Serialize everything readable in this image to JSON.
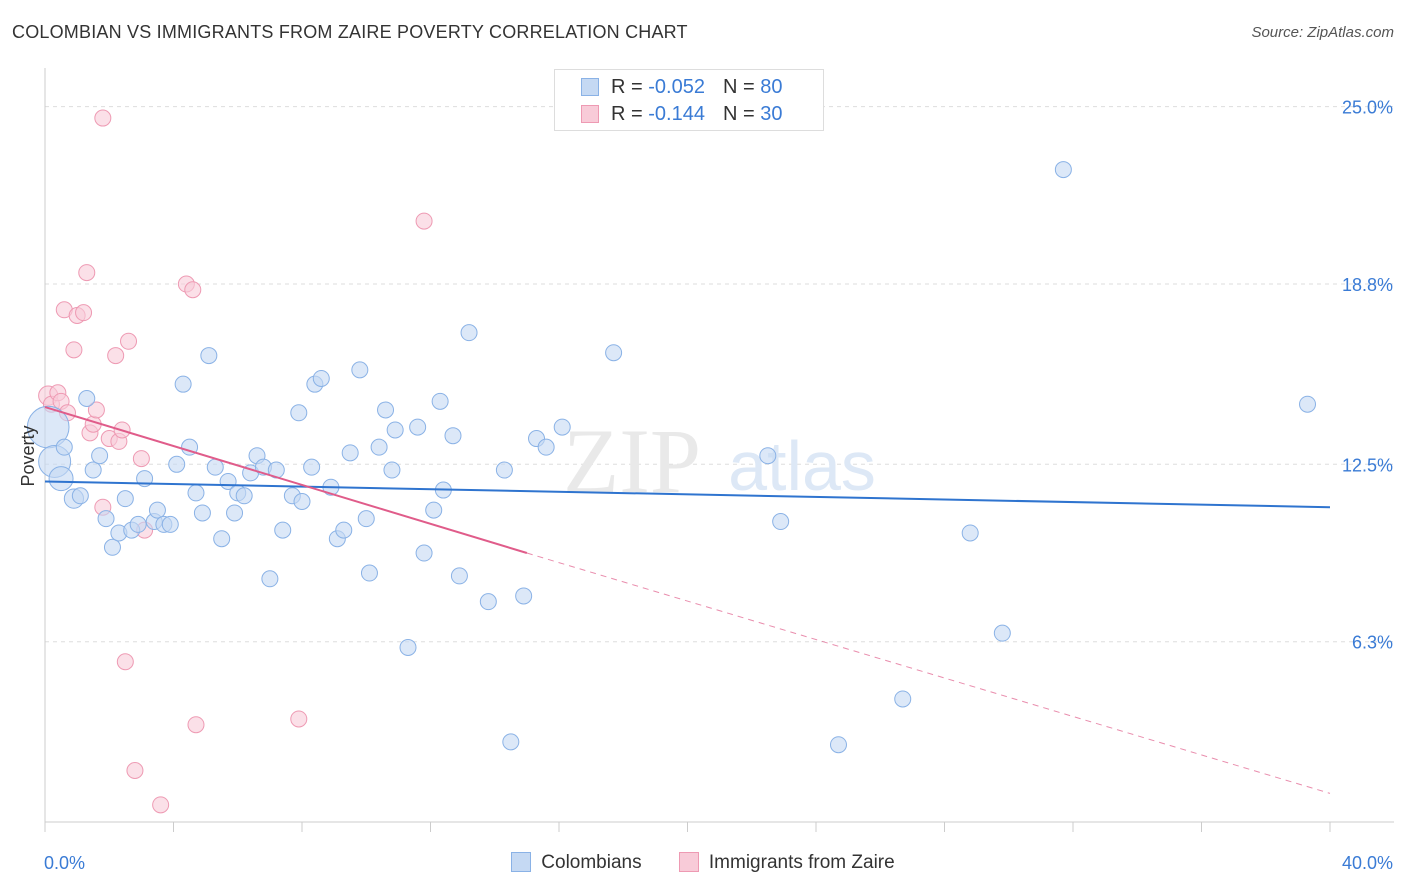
{
  "header": {
    "title": "COLOMBIAN VS IMMIGRANTS FROM ZAIRE POVERTY CORRELATION CHART",
    "source": "Source: ZipAtlas.com"
  },
  "watermark": {
    "zip": "ZIP",
    "atlas": "atlas"
  },
  "legend": {
    "rows": [
      {
        "r_label": "R = ",
        "r_value": "-0.052",
        "n_label": "N = ",
        "n_value": "80"
      },
      {
        "r_label": "R = ",
        "r_value": "-0.144",
        "n_label": "N = ",
        "n_value": "30"
      }
    ]
  },
  "colors": {
    "blue_fill": "#c5d9f3",
    "blue_stroke": "#8ab2e6",
    "blue_line": "#2f74cf",
    "pink_fill": "#f8cbd8",
    "pink_stroke": "#ee9ab3",
    "pink_line": "#e05c8a",
    "grid": "#dddddd",
    "tick_text": "#3a7bd5"
  },
  "chart_data": {
    "type": "scatter",
    "title": "COLOMBIAN VS IMMIGRANTS FROM ZAIRE POVERTY CORRELATION CHART",
    "xlabel": "",
    "ylabel": "Poverty",
    "xlim": [
      0,
      40
    ],
    "ylim": [
      0,
      26
    ],
    "x_tick_labels": [
      "0.0%",
      "40.0%"
    ],
    "y_ticks": [
      6.3,
      12.5,
      18.8,
      25.0
    ],
    "y_tick_labels": [
      "6.3%",
      "12.5%",
      "18.8%",
      "25.0%"
    ],
    "grid": "horizontal dashed",
    "legend_position": "bottom",
    "series": [
      {
        "name": "Colombians",
        "color": "#8ab2e6",
        "trend": {
          "x": [
            0,
            40
          ],
          "y": [
            11.9,
            11.0
          ],
          "style": "solid"
        },
        "points": [
          [
            0.1,
            13.8,
            2.6
          ],
          [
            0.3,
            12.6,
            2.0
          ],
          [
            0.5,
            12.0,
            1.5
          ],
          [
            0.6,
            13.1,
            1.0
          ],
          [
            0.9,
            11.3,
            1.2
          ],
          [
            1.1,
            11.4,
            1.0
          ],
          [
            1.3,
            14.8,
            1.0
          ],
          [
            1.5,
            12.3,
            1.0
          ],
          [
            1.7,
            12.8,
            1.0
          ],
          [
            1.9,
            10.6,
            1.0
          ],
          [
            2.1,
            9.6,
            1.0
          ],
          [
            2.3,
            10.1,
            1.0
          ],
          [
            2.5,
            11.3,
            1.0
          ],
          [
            2.7,
            10.2,
            1.0
          ],
          [
            2.9,
            10.4,
            1.0
          ],
          [
            3.1,
            12.0,
            1.0
          ],
          [
            3.4,
            10.5,
            1.0
          ],
          [
            3.5,
            10.9,
            1.0
          ],
          [
            3.7,
            10.4,
            1.0
          ],
          [
            3.9,
            10.4,
            1.0
          ],
          [
            4.1,
            12.5,
            1.0
          ],
          [
            4.3,
            15.3,
            1.0
          ],
          [
            4.5,
            13.1,
            1.0
          ],
          [
            4.7,
            11.5,
            1.0
          ],
          [
            4.9,
            10.8,
            1.0
          ],
          [
            5.1,
            16.3,
            1.0
          ],
          [
            5.3,
            12.4,
            1.0
          ],
          [
            5.5,
            9.9,
            1.0
          ],
          [
            5.7,
            11.9,
            1.0
          ],
          [
            5.9,
            10.8,
            1.0
          ],
          [
            6.0,
            11.5,
            1.0
          ],
          [
            6.2,
            11.4,
            1.0
          ],
          [
            6.4,
            12.2,
            1.0
          ],
          [
            6.6,
            12.8,
            1.0
          ],
          [
            6.8,
            12.4,
            1.0
          ],
          [
            7.0,
            8.5,
            1.0
          ],
          [
            7.2,
            12.3,
            1.0
          ],
          [
            7.4,
            10.2,
            1.0
          ],
          [
            7.7,
            11.4,
            1.0
          ],
          [
            7.9,
            14.3,
            1.0
          ],
          [
            8.0,
            11.2,
            1.0
          ],
          [
            8.3,
            12.4,
            1.0
          ],
          [
            8.4,
            15.3,
            1.0
          ],
          [
            8.6,
            15.5,
            1.0
          ],
          [
            8.9,
            11.7,
            1.0
          ],
          [
            9.1,
            9.9,
            1.0
          ],
          [
            9.3,
            10.2,
            1.0
          ],
          [
            9.5,
            12.9,
            1.0
          ],
          [
            9.8,
            15.8,
            1.0
          ],
          [
            10.0,
            10.6,
            1.0
          ],
          [
            10.1,
            8.7,
            1.0
          ],
          [
            10.4,
            13.1,
            1.0
          ],
          [
            10.6,
            14.4,
            1.0
          ],
          [
            10.8,
            12.3,
            1.0
          ],
          [
            10.9,
            13.7,
            1.0
          ],
          [
            11.3,
            6.1,
            1.0
          ],
          [
            11.6,
            13.8,
            1.0
          ],
          [
            11.8,
            9.4,
            1.0
          ],
          [
            12.1,
            10.9,
            1.0
          ],
          [
            12.3,
            14.7,
            1.0
          ],
          [
            12.4,
            11.6,
            1.0
          ],
          [
            12.7,
            13.5,
            1.0
          ],
          [
            12.9,
            8.6,
            1.0
          ],
          [
            13.2,
            17.1,
            1.0
          ],
          [
            13.8,
            7.7,
            1.0
          ],
          [
            14.3,
            12.3,
            1.0
          ],
          [
            14.5,
            2.8,
            1.0
          ],
          [
            14.9,
            7.9,
            1.0
          ],
          [
            15.3,
            13.4,
            1.0
          ],
          [
            15.6,
            13.1,
            1.0
          ],
          [
            16.1,
            13.8,
            1.0
          ],
          [
            17.7,
            16.4,
            1.0
          ],
          [
            22.5,
            12.8,
            1.0
          ],
          [
            22.9,
            10.5,
            1.0
          ],
          [
            24.7,
            2.7,
            1.0
          ],
          [
            26.7,
            4.3,
            1.0
          ],
          [
            28.8,
            10.1,
            1.0
          ],
          [
            29.8,
            6.6,
            1.0
          ],
          [
            31.7,
            22.8,
            1.0
          ],
          [
            39.3,
            14.6,
            1.0
          ]
        ]
      },
      {
        "name": "Immigrants from Zaire",
        "color": "#ee9ab3",
        "trend": {
          "x": [
            0,
            15
          ],
          "y": [
            14.5,
            9.4
          ],
          "style": "solid",
          "extended_to": [
            40,
            1.0
          ]
        },
        "points": [
          [
            0.1,
            14.9,
            1.2
          ],
          [
            0.2,
            14.6,
            1.0
          ],
          [
            0.4,
            15.0,
            1.0
          ],
          [
            0.5,
            14.7,
            1.0
          ],
          [
            0.6,
            17.9,
            1.0
          ],
          [
            0.7,
            14.3,
            1.0
          ],
          [
            0.9,
            16.5,
            1.0
          ],
          [
            1.0,
            17.7,
            1.0
          ],
          [
            1.2,
            17.8,
            1.0
          ],
          [
            1.3,
            19.2,
            1.0
          ],
          [
            1.4,
            13.6,
            1.0
          ],
          [
            1.5,
            13.9,
            1.0
          ],
          [
            1.6,
            14.4,
            1.0
          ],
          [
            1.8,
            11.0,
            1.0
          ],
          [
            1.8,
            24.6,
            1.0
          ],
          [
            2.0,
            13.4,
            1.0
          ],
          [
            2.2,
            16.3,
            1.0
          ],
          [
            2.3,
            13.3,
            1.0
          ],
          [
            2.4,
            13.7,
            1.0
          ],
          [
            2.5,
            5.6,
            1.0
          ],
          [
            2.6,
            16.8,
            1.0
          ],
          [
            2.8,
            1.8,
            1.0
          ],
          [
            3.0,
            12.7,
            1.0
          ],
          [
            3.1,
            10.2,
            1.0
          ],
          [
            3.6,
            0.6,
            1.0
          ],
          [
            4.4,
            18.8,
            1.0
          ],
          [
            4.6,
            18.6,
            1.0
          ],
          [
            4.7,
            3.4,
            1.0
          ],
          [
            7.9,
            3.6,
            1.0
          ],
          [
            11.8,
            21.0,
            1.0
          ]
        ]
      }
    ]
  },
  "bottom_legend": {
    "blue_label": "Colombians",
    "pink_label": "Immigrants from Zaire"
  }
}
